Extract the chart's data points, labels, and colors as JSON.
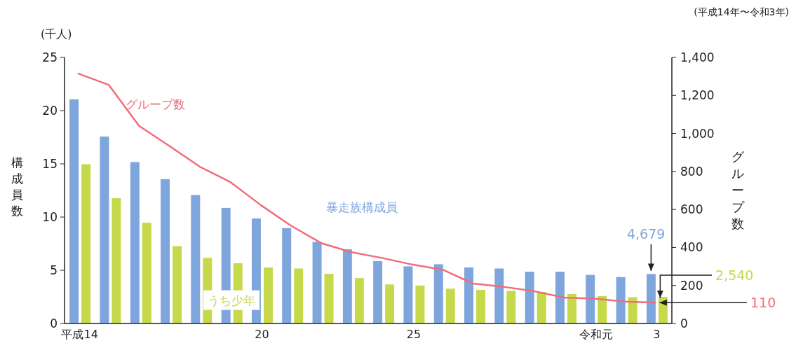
{
  "chart_data": {
    "type": "bar",
    "ylabel": "構成員数",
    "y2label": "グループ数",
    "annotations": [
      "(千人)",
      "(平成14年〜令和3年)",
      {
        "text": "4,679",
        "x": "3",
        "y": 4.679
      },
      {
        "text": "2,540",
        "x": "3",
        "y": 2.54
      },
      "110"
    ],
    "categories": [
      "平成14",
      null,
      null,
      null,
      null,
      null,
      "20",
      null,
      null,
      null,
      null,
      "25",
      null,
      null,
      null,
      null,
      null,
      "令和元",
      null,
      "3"
    ],
    "ylim": [
      0,
      25
    ],
    "yticks": [
      0,
      5,
      10,
      15,
      20,
      25
    ],
    "y2lim": [
      0,
      1400
    ],
    "y2ticks": [
      0,
      {
        "value": 200,
        "label": "200"
      },
      {
        "value": 400,
        "label": "400"
      },
      {
        "value": 600,
        "label": "600"
      },
      {
        "value": 800,
        "label": "800"
      },
      {
        "value": 1000,
        "label": "1,000"
      },
      {
        "value": 1200,
        "label": "1,200"
      },
      {
        "value": 1400,
        "label": "1,400"
      }
    ],
    "series": [
      {
        "name": "暴走族構成員",
        "color": "#7ea6dc",
        "values": [
          21.1,
          17.6,
          15.2,
          13.6,
          12.1,
          10.9,
          9.9,
          9.0,
          7.7,
          7.0,
          5.9,
          5.4,
          5.6,
          5.3,
          5.2,
          4.9,
          4.9,
          4.6,
          4.4,
          4.679
        ]
      },
      {
        "name": "うち少年",
        "color": "#c5d94a",
        "values": [
          15.0,
          11.8,
          9.5,
          7.3,
          6.2,
          5.7,
          5.3,
          5.2,
          4.7,
          4.3,
          3.7,
          3.6,
          3.3,
          3.2,
          3.1,
          3.0,
          2.8,
          2.6,
          2.5,
          2.54
        ]
      },
      {
        "name": "グループ数",
        "type": "line",
        "axis": "y2",
        "color": "#ee6e7a",
        "values": [
          1315,
          1256,
          1040,
          934,
          825,
          745,
          624,
          515,
          423,
          375,
          345,
          310,
          283,
          210,
          193,
          170,
          136,
          131,
          115,
          110
        ]
      }
    ]
  }
}
